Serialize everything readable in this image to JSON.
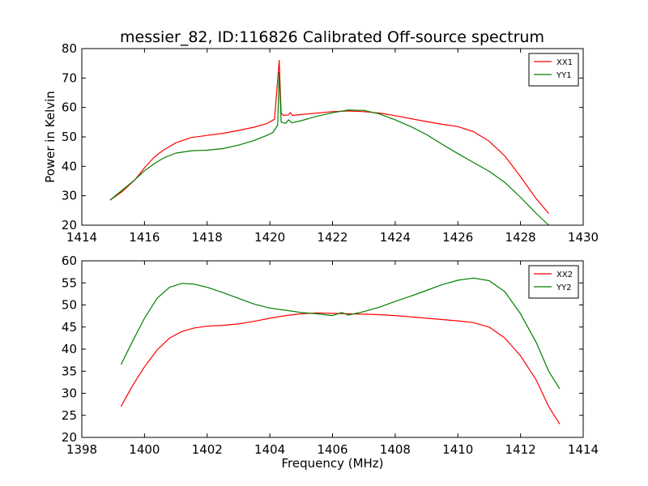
{
  "figure": {
    "title": "messier_82, ID:116826 Calibrated Off-source spectrum"
  },
  "chart_data": [
    {
      "type": "line",
      "title": "messier_82, ID:116826 Calibrated Off-source spectrum",
      "xlabel": "",
      "ylabel": "Power in Kelvin",
      "xlim": [
        1414,
        1430
      ],
      "ylim": [
        20,
        80
      ],
      "x_ticks": [
        1414,
        1416,
        1418,
        1420,
        1422,
        1424,
        1426,
        1428,
        1430
      ],
      "y_ticks": [
        20,
        30,
        40,
        50,
        60,
        70,
        80
      ],
      "legend_position": "top-right",
      "grid": false,
      "series": [
        {
          "name": "XX1",
          "color": "#ff0000",
          "points": [
            [
              1414.9,
              28.5
            ],
            [
              1415.3,
              31.5
            ],
            [
              1415.7,
              35.5
            ],
            [
              1416.0,
              39.5
            ],
            [
              1416.3,
              43
            ],
            [
              1416.6,
              45.5
            ],
            [
              1417.0,
              48
            ],
            [
              1417.5,
              49.8
            ],
            [
              1418.0,
              50.5
            ],
            [
              1418.5,
              51.2
            ],
            [
              1419.0,
              52.2
            ],
            [
              1419.5,
              53.3
            ],
            [
              1419.9,
              54.5
            ],
            [
              1420.15,
              56
            ],
            [
              1420.3,
              76
            ],
            [
              1420.36,
              58
            ],
            [
              1420.45,
              57.3
            ],
            [
              1420.6,
              57.5
            ],
            [
              1420.65,
              58.3
            ],
            [
              1420.72,
              57.3
            ],
            [
              1421.0,
              57.6
            ],
            [
              1421.5,
              58.1
            ],
            [
              1422.0,
              58.6
            ],
            [
              1422.5,
              58.8
            ],
            [
              1423.0,
              58.6
            ],
            [
              1423.5,
              58.1
            ],
            [
              1424.0,
              57.2
            ],
            [
              1424.5,
              56.2
            ],
            [
              1425.0,
              55.2
            ],
            [
              1425.5,
              54.3
            ],
            [
              1426.0,
              53.5
            ],
            [
              1426.5,
              51.8
            ],
            [
              1427.0,
              48.5
            ],
            [
              1427.5,
              43.5
            ],
            [
              1428.0,
              36.5
            ],
            [
              1428.5,
              29
            ],
            [
              1428.9,
              24
            ]
          ]
        },
        {
          "name": "YY1",
          "color": "#008000",
          "points": [
            [
              1414.9,
              28.5
            ],
            [
              1415.3,
              32
            ],
            [
              1415.7,
              35.5
            ],
            [
              1416.0,
              38.5
            ],
            [
              1416.3,
              40.8
            ],
            [
              1416.6,
              42.8
            ],
            [
              1417.0,
              44.5
            ],
            [
              1417.5,
              45.3
            ],
            [
              1418.0,
              45.5
            ],
            [
              1418.5,
              46
            ],
            [
              1419.0,
              47.2
            ],
            [
              1419.5,
              48.8
            ],
            [
              1419.9,
              50.5
            ],
            [
              1420.1,
              51.5
            ],
            [
              1420.25,
              54
            ],
            [
              1420.3,
              72
            ],
            [
              1420.36,
              55
            ],
            [
              1420.5,
              54.6
            ],
            [
              1420.6,
              55.8
            ],
            [
              1420.7,
              54.8
            ],
            [
              1421.0,
              55.5
            ],
            [
              1421.5,
              57
            ],
            [
              1422.0,
              58.2
            ],
            [
              1422.5,
              59.1
            ],
            [
              1423.0,
              59.0
            ],
            [
              1423.5,
              57.8
            ],
            [
              1424.0,
              55.8
            ],
            [
              1424.5,
              53.5
            ],
            [
              1425.0,
              50.8
            ],
            [
              1425.5,
              47.5
            ],
            [
              1426.0,
              44.3
            ],
            [
              1426.5,
              41.3
            ],
            [
              1427.0,
              38.3
            ],
            [
              1427.5,
              34.5
            ],
            [
              1428.0,
              29.5
            ],
            [
              1428.5,
              24
            ],
            [
              1428.9,
              20
            ]
          ]
        }
      ]
    },
    {
      "type": "line",
      "title": "",
      "xlabel": "Frequency (MHz)",
      "ylabel": "",
      "xlim": [
        1398,
        1414
      ],
      "ylim": [
        20,
        60
      ],
      "x_ticks": [
        1398,
        1400,
        1402,
        1404,
        1406,
        1408,
        1410,
        1412,
        1414
      ],
      "y_ticks": [
        20,
        25,
        30,
        35,
        40,
        45,
        50,
        55,
        60
      ],
      "legend_position": "top-right",
      "grid": false,
      "series": [
        {
          "name": "XX2",
          "color": "#ff0000",
          "points": [
            [
              1399.25,
              27
            ],
            [
              1399.6,
              31.5
            ],
            [
              1400.0,
              36
            ],
            [
              1400.4,
              39.8
            ],
            [
              1400.8,
              42.5
            ],
            [
              1401.2,
              44
            ],
            [
              1401.6,
              44.8
            ],
            [
              1402.0,
              45.2
            ],
            [
              1402.5,
              45.4
            ],
            [
              1403.0,
              45.7
            ],
            [
              1403.5,
              46.3
            ],
            [
              1404.0,
              47
            ],
            [
              1404.5,
              47.6
            ],
            [
              1405.0,
              48
            ],
            [
              1405.5,
              48.2
            ],
            [
              1406.0,
              48.1
            ],
            [
              1406.5,
              48
            ],
            [
              1407.0,
              47.9
            ],
            [
              1407.5,
              47.8
            ],
            [
              1408.0,
              47.6
            ],
            [
              1408.5,
              47.3
            ],
            [
              1409.0,
              47
            ],
            [
              1409.5,
              46.7
            ],
            [
              1410.0,
              46.4
            ],
            [
              1410.5,
              46
            ],
            [
              1411.0,
              45
            ],
            [
              1411.5,
              42.5
            ],
            [
              1412.0,
              38.5
            ],
            [
              1412.5,
              33
            ],
            [
              1412.9,
              27
            ],
            [
              1413.25,
              23
            ]
          ]
        },
        {
          "name": "YY2",
          "color": "#008000",
          "points": [
            [
              1399.25,
              36.5
            ],
            [
              1399.6,
              41.5
            ],
            [
              1400.0,
              47
            ],
            [
              1400.4,
              51.5
            ],
            [
              1400.8,
              54
            ],
            [
              1401.2,
              54.9
            ],
            [
              1401.6,
              54.7
            ],
            [
              1402.0,
              54
            ],
            [
              1402.5,
              52.8
            ],
            [
              1403.0,
              51.5
            ],
            [
              1403.5,
              50.2
            ],
            [
              1404.0,
              49.3
            ],
            [
              1404.5,
              48.8
            ],
            [
              1405.0,
              48.3
            ],
            [
              1405.5,
              48
            ],
            [
              1406.0,
              47.6
            ],
            [
              1406.3,
              48.3
            ],
            [
              1406.5,
              47.7
            ],
            [
              1407.0,
              48.5
            ],
            [
              1407.5,
              49.5
            ],
            [
              1408.0,
              50.8
            ],
            [
              1408.5,
              52
            ],
            [
              1409.0,
              53.3
            ],
            [
              1409.5,
              54.6
            ],
            [
              1410.0,
              55.6
            ],
            [
              1410.5,
              56.1
            ],
            [
              1411.0,
              55.5
            ],
            [
              1411.5,
              53
            ],
            [
              1412.0,
              48
            ],
            [
              1412.5,
              41.5
            ],
            [
              1412.9,
              35
            ],
            [
              1413.25,
              31
            ]
          ]
        }
      ]
    }
  ]
}
